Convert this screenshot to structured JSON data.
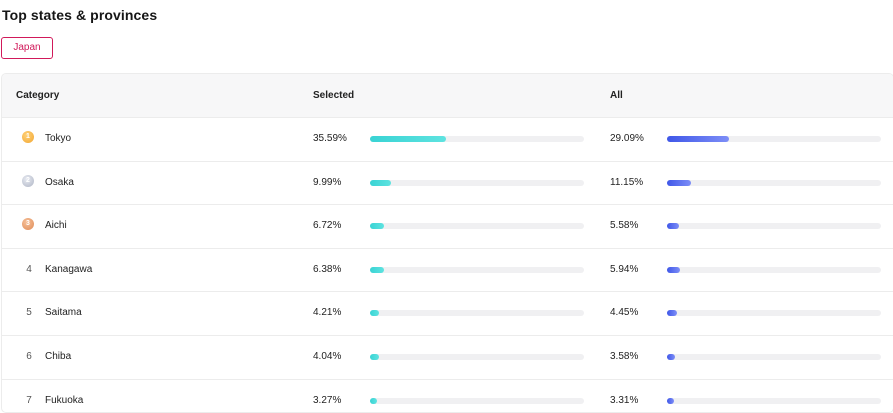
{
  "title": "Top states & provinces",
  "filter_chip": "Japan",
  "table": {
    "headers": {
      "category": "Category",
      "selected": "Selected",
      "all": "All"
    },
    "rows": [
      {
        "rank": "1",
        "medal": "gold",
        "name": "Tokyo",
        "selected": "35.59%",
        "all": "29.09%",
        "selected_value": 35.59,
        "all_value": 29.09
      },
      {
        "rank": "2",
        "medal": "silver",
        "name": "Osaka",
        "selected": "9.99%",
        "all": "11.15%",
        "selected_value": 9.99,
        "all_value": 11.15
      },
      {
        "rank": "3",
        "medal": "bronze",
        "name": "Aichi",
        "selected": "6.72%",
        "all": "5.58%",
        "selected_value": 6.72,
        "all_value": 5.58
      },
      {
        "rank": "4",
        "medal": "",
        "name": "Kanagawa",
        "selected": "6.38%",
        "all": "5.94%",
        "selected_value": 6.38,
        "all_value": 5.94
      },
      {
        "rank": "5",
        "medal": "",
        "name": "Saitama",
        "selected": "4.21%",
        "all": "4.45%",
        "selected_value": 4.21,
        "all_value": 4.45
      },
      {
        "rank": "6",
        "medal": "",
        "name": "Chiba",
        "selected": "4.04%",
        "all": "3.58%",
        "selected_value": 4.04,
        "all_value": 3.58
      },
      {
        "rank": "7",
        "medal": "",
        "name": "Fukuoka",
        "selected": "3.27%",
        "all": "3.31%",
        "selected_value": 3.27,
        "all_value": 3.31
      }
    ]
  },
  "colors": {
    "accent": "#d1195a",
    "selected_bar": "#39d3d4",
    "all_bar": "#3f57e8",
    "track": "#f0f0f2"
  }
}
